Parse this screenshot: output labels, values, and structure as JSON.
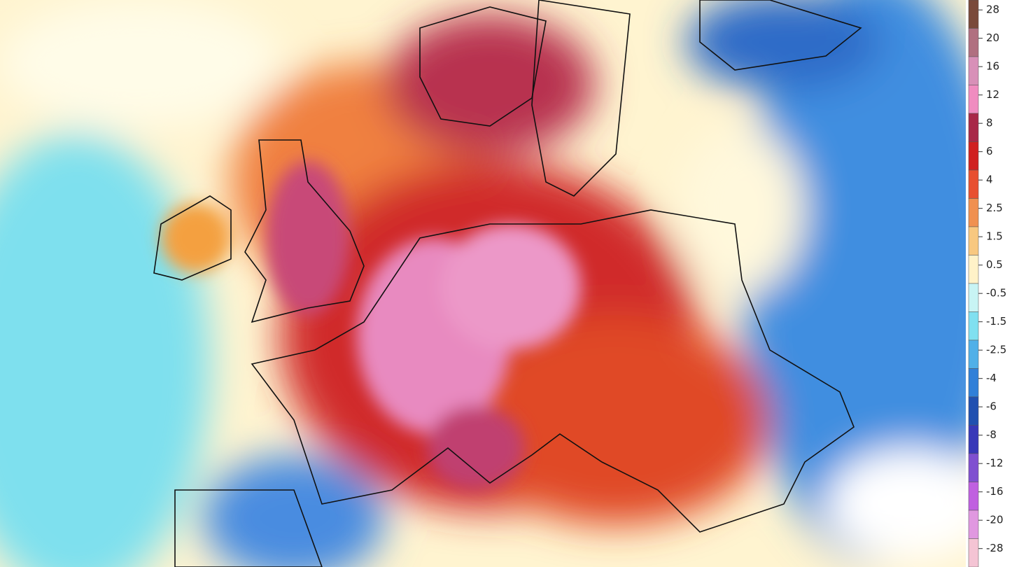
{
  "legend": {
    "labels": [
      28,
      20,
      16,
      12,
      8,
      6,
      4,
      2.5,
      1.5,
      0.5,
      -0.5,
      -1.5,
      -2.5,
      -4,
      -6,
      -8,
      -12,
      -16,
      -20,
      -28
    ],
    "colors": [
      "#7a4a3a",
      "#b07080",
      "#d890b8",
      "#f08cc0",
      "#a82848",
      "#d02020",
      "#e85030",
      "#f09050",
      "#f8c880",
      "#fff2c8",
      "#c8f4f4",
      "#80e0f0",
      "#50b0e8",
      "#3080d8",
      "#2050b0",
      "#3838b8",
      "#8050d0",
      "#c060e0",
      "#e098e0",
      "#f4c4d4"
    ]
  }
}
